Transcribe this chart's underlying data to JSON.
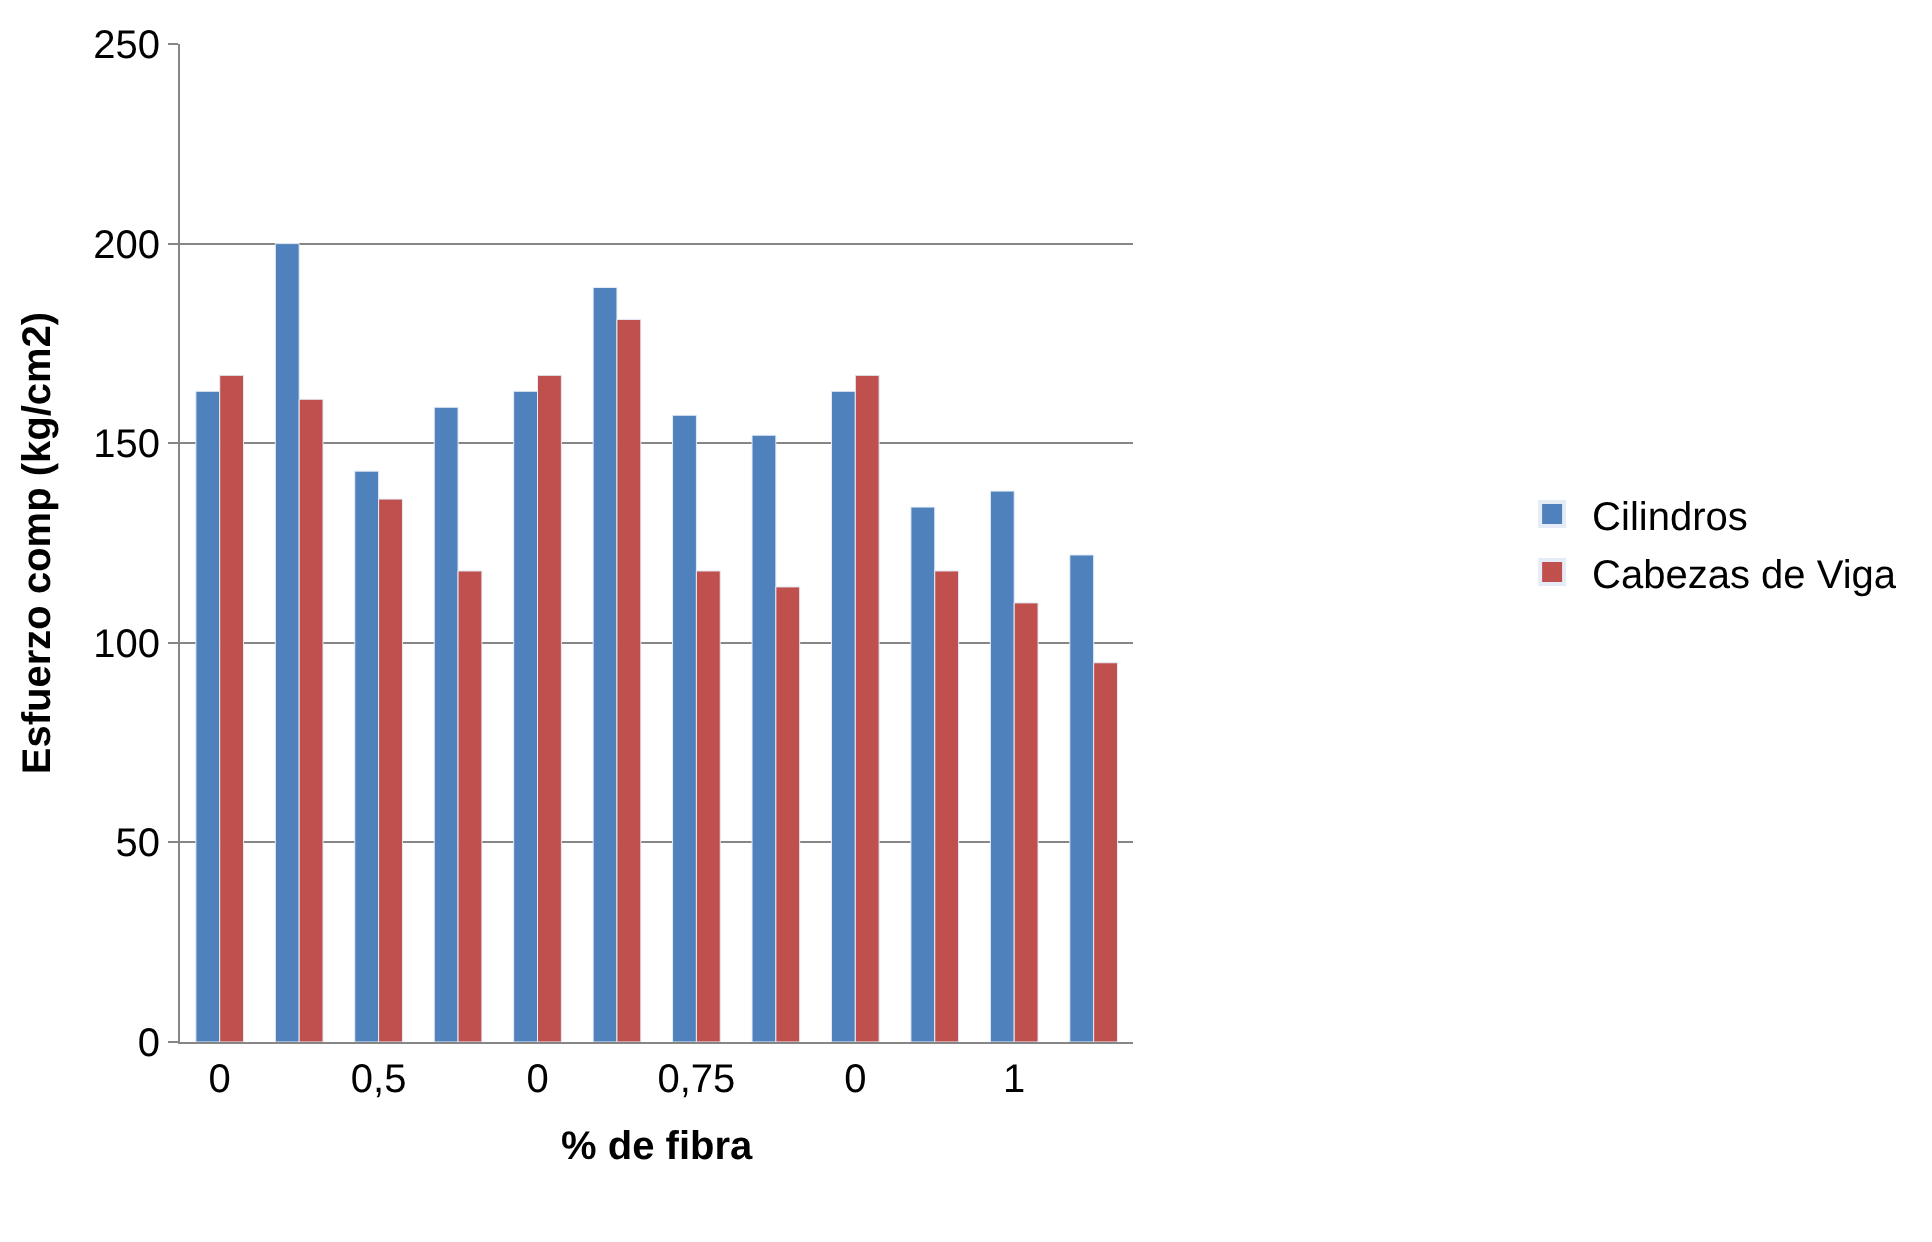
{
  "chart_data": {
    "type": "bar",
    "xlabel": "% de fibra",
    "ylabel": "Esfuerzo comp (kg/cm2)",
    "categories": [
      "0",
      null,
      "0,5",
      null,
      "0",
      null,
      "0,75",
      null,
      "0",
      null,
      "1",
      null
    ],
    "series": [
      {
        "name": "Cilindros",
        "color": "#4f81bd",
        "values": [
          163,
          200,
          143,
          159,
          163,
          189,
          157,
          152,
          163,
          134,
          138,
          122
        ]
      },
      {
        "name": "Cabezas de Viga",
        "color": "#c0504d",
        "values": [
          167,
          161,
          136,
          118,
          167,
          181,
          118,
          114,
          167,
          118,
          110,
          95
        ]
      }
    ],
    "ylim": [
      0,
      250
    ],
    "yticks": [
      0,
      50,
      100,
      150,
      200,
      250
    ],
    "grid": "y",
    "legend": "right"
  }
}
